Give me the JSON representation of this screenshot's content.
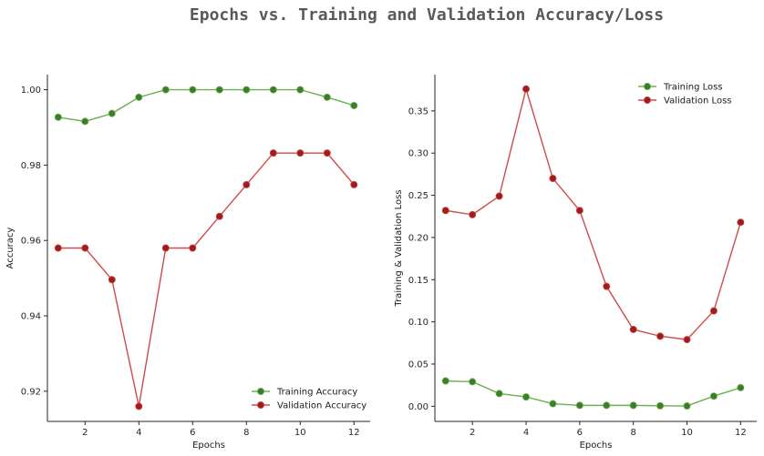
{
  "figure": {
    "title": "Epochs vs. Training and Validation Accuracy/Loss"
  },
  "chart_data": [
    {
      "type": "line",
      "xlabel": "Epochs",
      "ylabel": "Accuracy",
      "x": [
        1,
        2,
        3,
        4,
        5,
        6,
        7,
        8,
        9,
        10,
        11,
        12
      ],
      "xlim": [
        0.6,
        12.6
      ],
      "ylim": [
        0.912,
        1.004
      ],
      "xticks": [
        2,
        4,
        6,
        8,
        10,
        12
      ],
      "yticks": [
        0.92,
        0.94,
        0.96,
        0.98,
        1.0
      ],
      "ytick_labels": [
        "0.92",
        "0.94",
        "0.96",
        "0.98",
        "1.00"
      ],
      "grid": false,
      "legend_position": "lower-right",
      "series": [
        {
          "name": "Training Accuracy",
          "color": "#6ab04c",
          "marker_color": "#3b7d2a",
          "values": [
            0.9927,
            0.9916,
            0.9937,
            0.998,
            1.0,
            1.0,
            1.0,
            1.0,
            1.0,
            1.0,
            0.998,
            0.9958
          ]
        },
        {
          "name": "Validation Accuracy",
          "color": "#d04a4a",
          "marker_color": "#9e1c1c",
          "values": [
            0.958,
            0.958,
            0.9496,
            0.916,
            0.958,
            0.958,
            0.9664,
            0.9748,
            0.9832,
            0.9832,
            0.9832,
            0.9748
          ]
        }
      ]
    },
    {
      "type": "line",
      "xlabel": "Epochs",
      "ylabel": "Training & Validation Loss",
      "x": [
        1,
        2,
        3,
        4,
        5,
        6,
        7,
        8,
        9,
        10,
        11,
        12
      ],
      "xlim": [
        0.6,
        12.6
      ],
      "ylim": [
        -0.018,
        0.393
      ],
      "xticks": [
        2,
        4,
        6,
        8,
        10,
        12
      ],
      "yticks": [
        0.0,
        0.05,
        0.1,
        0.15,
        0.2,
        0.25,
        0.3,
        0.35
      ],
      "ytick_labels": [
        "0.00",
        "0.05",
        "0.10",
        "0.15",
        "0.20",
        "0.25",
        "0.30",
        "0.35"
      ],
      "grid": false,
      "legend_position": "upper-right",
      "series": [
        {
          "name": "Training Loss",
          "color": "#6ab04c",
          "marker_color": "#3b7d2a",
          "values": [
            0.03,
            0.029,
            0.015,
            0.011,
            0.003,
            0.001,
            0.001,
            0.001,
            0.0005,
            0.0003,
            0.012,
            0.022
          ]
        },
        {
          "name": "Validation Loss",
          "color": "#d04a4a",
          "marker_color": "#9e1c1c",
          "values": [
            0.232,
            0.227,
            0.249,
            0.376,
            0.27,
            0.232,
            0.142,
            0.091,
            0.083,
            0.079,
            0.113,
            0.218
          ]
        }
      ]
    }
  ]
}
